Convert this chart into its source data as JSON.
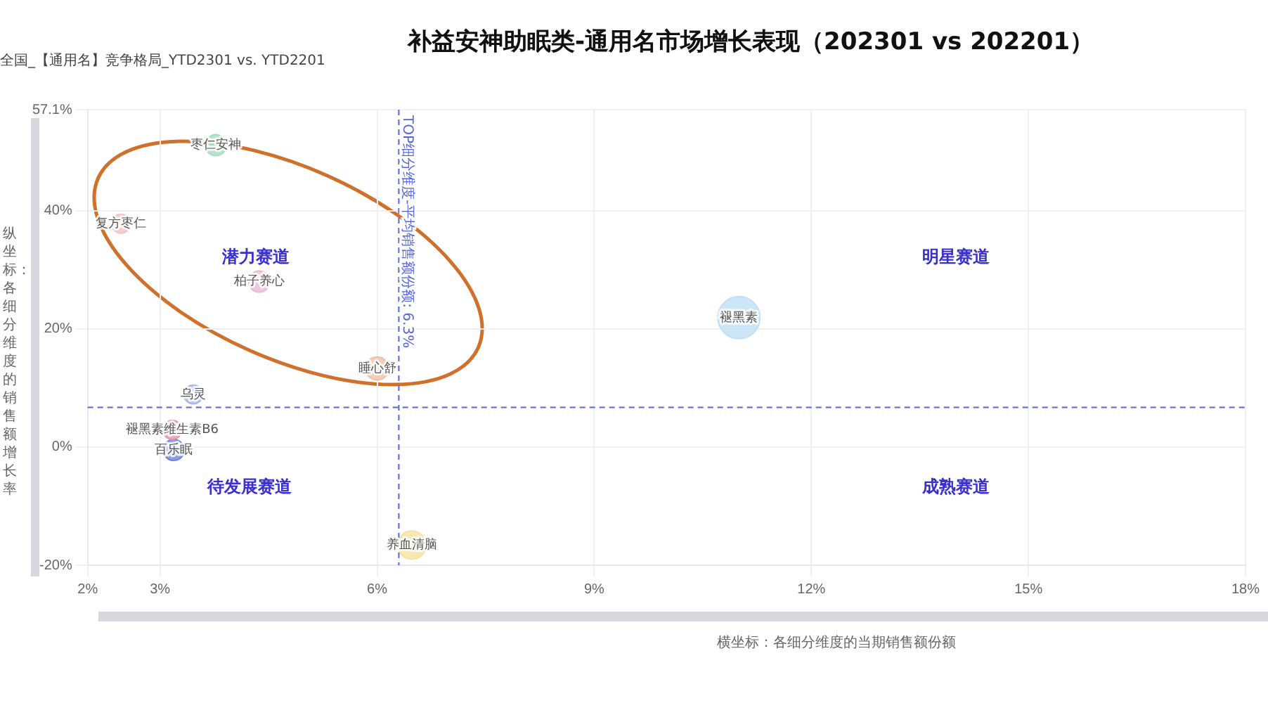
{
  "chart_data": {
    "type": "bubble",
    "title": "补益安神助眠类-通用名市场增长表现（202301 vs 202201）",
    "subtitle": "全国_【通用名】竞争格局_YTD2301 vs. YTD2201",
    "xlabel": "横坐标：各细分维度的当期销售额份额",
    "ylabel": "纵坐标：各细分维度的销售额增长率",
    "xlim": [
      2,
      18
    ],
    "xticks": [
      {
        "value": 2,
        "label": "2%"
      },
      {
        "value": 3,
        "label": "3%"
      },
      {
        "value": 6,
        "label": "6%"
      },
      {
        "value": 9,
        "label": "9%"
      },
      {
        "value": 12,
        "label": "12%"
      },
      {
        "value": 15,
        "label": "15%"
      },
      {
        "value": 18,
        "label": "18%"
      }
    ],
    "ylim": [
      -20,
      57.1
    ],
    "yticks": [
      {
        "value": -20,
        "label": "-20%"
      },
      {
        "value": 0,
        "label": "0%"
      },
      {
        "value": 20,
        "label": "20%"
      },
      {
        "value": 40,
        "label": "40%"
      },
      {
        "value": 57.1,
        "label": "57.1%"
      }
    ],
    "grid": true,
    "legend": false,
    "series": [
      {
        "name": "枣仁安神",
        "color": "#a8dcc0",
        "x": [
          3.77
        ],
        "values": [
          51.1
        ],
        "sizes": [
          0.25
        ]
      },
      {
        "name": "复方枣仁",
        "color": "#f2c4c4",
        "x": [
          2.46
        ],
        "values": [
          37.8
        ],
        "sizes": [
          0.2
        ]
      },
      {
        "name": "柏子养心",
        "color": "#eab8d8",
        "x": [
          4.37
        ],
        "values": [
          28.0
        ],
        "sizes": [
          0.25
        ]
      },
      {
        "name": "褪黑素",
        "color": "#bfe0f6",
        "x": [
          11.0
        ],
        "values": [
          21.9
        ],
        "sizes": [
          1
        ]
      },
      {
        "name": "睡心舒",
        "color": "#f0c0a8",
        "x": [
          6.0
        ],
        "values": [
          13.3
        ],
        "sizes": [
          0.3
        ]
      },
      {
        "name": "乌灵",
        "color": "#a8b4ee",
        "x": [
          3.46
        ],
        "values": [
          8.9
        ],
        "sizes": [
          0.2
        ]
      },
      {
        "name": "褪黑素维生素B6",
        "color": "#e09aa8",
        "x": [
          3.17
        ],
        "values": [
          2.9
        ],
        "sizes": [
          0.2
        ]
      },
      {
        "name": "百乐眠",
        "color": "#6f86e0",
        "x": [
          3.19
        ],
        "values": [
          -0.5
        ],
        "sizes": [
          0.25
        ]
      },
      {
        "name": "养血清脑",
        "color": "#f6e2a0",
        "x": [
          6.48
        ],
        "values": [
          -16.6
        ],
        "sizes": [
          0.45
        ]
      }
    ],
    "ref_lines": [
      {
        "axis": "x",
        "value": 6.3,
        "label": "TOP细分维度-平均销售额份额: 6.3%",
        "color": "#5566dd",
        "line_style": "dashed"
      },
      {
        "axis": "y",
        "value": 6.7,
        "color": "#5566dd",
        "line_style": "dashed"
      }
    ],
    "annotations": [
      "潜力赛道",
      "明星赛道",
      "待发展赛道",
      "成熟赛道"
    ]
  }
}
